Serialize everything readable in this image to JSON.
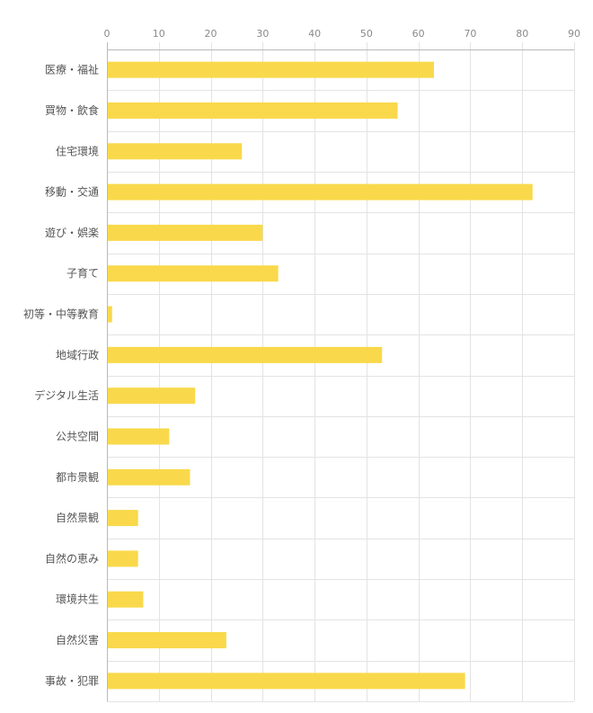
{
  "chart_data": {
    "type": "bar",
    "orientation": "horizontal",
    "title": "",
    "xlabel": "",
    "ylabel": "",
    "xlim": [
      0,
      90
    ],
    "x_ticks": [
      0,
      10,
      20,
      30,
      40,
      50,
      60,
      70,
      80,
      90
    ],
    "x_axis_position": "top",
    "grid": true,
    "legend": "none",
    "bar_color": "#f9d94b",
    "categories": [
      "医療・福祉",
      "買物・飲食",
      "住宅環境",
      "移動・交通",
      "遊び・娯楽",
      "子育て",
      "初等・中等教育",
      "地域行政",
      "デジタル生活",
      "公共空間",
      "都市景観",
      "自然景観",
      "自然の恵み",
      "環境共生",
      "自然災害",
      "事故・犯罪"
    ],
    "values": [
      63,
      56,
      26,
      82,
      30,
      33,
      1,
      53,
      17,
      12,
      16,
      6,
      6,
      7,
      23,
      69
    ]
  }
}
